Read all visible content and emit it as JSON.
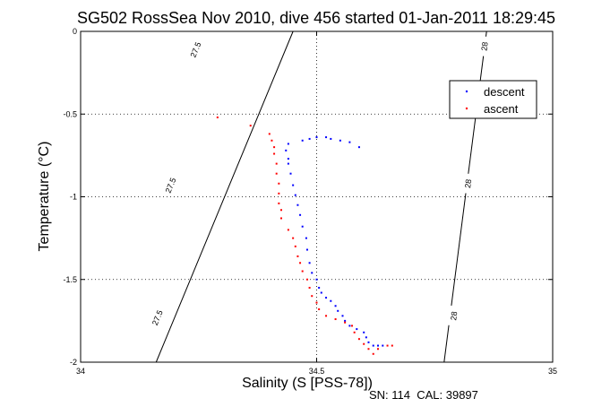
{
  "chart_data": {
    "type": "scatter",
    "title": "SG502 RossSea Nov 2010, dive 456 started 01-Jan-2011 18:29:45",
    "xlabel": "Salinity (S [PSS-78])",
    "ylabel": "Temperature (°C)",
    "xlim": [
      34,
      35
    ],
    "ylim": [
      -2,
      0
    ],
    "xticks": [
      34,
      34.5,
      35
    ],
    "xtick_labels": [
      "34",
      "34.5",
      "35"
    ],
    "yticks": [
      0,
      -0.5,
      -1,
      -1.5,
      -2
    ],
    "ytick_labels": [
      "0",
      "-0.5",
      "-1",
      "-1.5",
      "-2"
    ],
    "grid": true,
    "legend_position": "top-right",
    "footer": "SN: 114  CAL: 39897",
    "isopycnals": [
      {
        "label": "27.5",
        "points": [
          [
            34.45,
            0
          ],
          [
            34.16,
            -2
          ]
        ],
        "label_positions": [
          [
            34.243,
            -0.11
          ],
          [
            34.19,
            -0.93
          ],
          [
            34.162,
            -1.73
          ]
        ]
      },
      {
        "label": "28",
        "points": [
          [
            34.86,
            0
          ],
          [
            34.77,
            -2
          ]
        ],
        "label_positions": [
          [
            34.855,
            -0.09
          ],
          [
            34.82,
            -0.92
          ],
          [
            34.79,
            -1.72
          ]
        ]
      }
    ],
    "series": [
      {
        "name": "descent",
        "color": "#0000ff",
        "points": [
          [
            34.55,
            -0.66
          ],
          [
            34.57,
            -0.67
          ],
          [
            34.59,
            -0.7
          ],
          [
            34.53,
            -0.65
          ],
          [
            34.52,
            -0.64
          ],
          [
            34.5,
            -0.64
          ],
          [
            34.485,
            -0.65
          ],
          [
            34.47,
            -0.66
          ],
          [
            34.44,
            -0.68
          ],
          [
            34.435,
            -0.72
          ],
          [
            34.44,
            -0.77
          ],
          [
            34.44,
            -0.8
          ],
          [
            34.445,
            -0.86
          ],
          [
            34.45,
            -0.93
          ],
          [
            34.455,
            -0.99
          ],
          [
            34.46,
            -1.05
          ],
          [
            34.465,
            -1.11
          ],
          [
            34.47,
            -1.18
          ],
          [
            34.478,
            -1.25
          ],
          [
            34.48,
            -1.32
          ],
          [
            34.485,
            -1.4
          ],
          [
            34.49,
            -1.46
          ],
          [
            34.5,
            -1.5
          ],
          [
            34.505,
            -1.55
          ],
          [
            34.51,
            -1.58
          ],
          [
            34.52,
            -1.61
          ],
          [
            34.53,
            -1.63
          ],
          [
            34.54,
            -1.66
          ],
          [
            34.545,
            -1.69
          ],
          [
            34.555,
            -1.72
          ],
          [
            34.56,
            -1.75
          ],
          [
            34.57,
            -1.78
          ],
          [
            34.585,
            -1.8
          ],
          [
            34.6,
            -1.82
          ],
          [
            34.605,
            -1.85
          ],
          [
            34.61,
            -1.88
          ],
          [
            34.62,
            -1.9
          ],
          [
            34.63,
            -1.9
          ],
          [
            34.64,
            -1.9
          ]
        ]
      },
      {
        "name": "ascent",
        "color": "#ff0000",
        "points": [
          [
            34.29,
            -0.52
          ],
          [
            34.36,
            -0.57
          ],
          [
            34.4,
            -0.62
          ],
          [
            34.405,
            -0.66
          ],
          [
            34.41,
            -0.7
          ],
          [
            34.41,
            -0.74
          ],
          [
            34.415,
            -0.8
          ],
          [
            34.415,
            -0.86
          ],
          [
            34.42,
            -0.92
          ],
          [
            34.42,
            -0.98
          ],
          [
            34.42,
            -1.04
          ],
          [
            34.425,
            -1.08
          ],
          [
            34.425,
            -1.13
          ],
          [
            34.44,
            -1.2
          ],
          [
            34.45,
            -1.25
          ],
          [
            34.455,
            -1.3
          ],
          [
            34.46,
            -1.36
          ],
          [
            34.465,
            -1.4
          ],
          [
            34.47,
            -1.45
          ],
          [
            34.48,
            -1.5
          ],
          [
            34.485,
            -1.55
          ],
          [
            34.49,
            -1.6
          ],
          [
            34.5,
            -1.64
          ],
          [
            34.505,
            -1.68
          ],
          [
            34.52,
            -1.72
          ],
          [
            34.54,
            -1.74
          ],
          [
            34.56,
            -1.76
          ],
          [
            34.575,
            -1.78
          ],
          [
            34.58,
            -1.82
          ],
          [
            34.59,
            -1.86
          ],
          [
            34.6,
            -1.89
          ],
          [
            34.61,
            -1.92
          ],
          [
            34.62,
            -1.95
          ],
          [
            34.63,
            -1.92
          ],
          [
            34.65,
            -1.9
          ],
          [
            34.66,
            -1.9
          ]
        ]
      }
    ]
  }
}
